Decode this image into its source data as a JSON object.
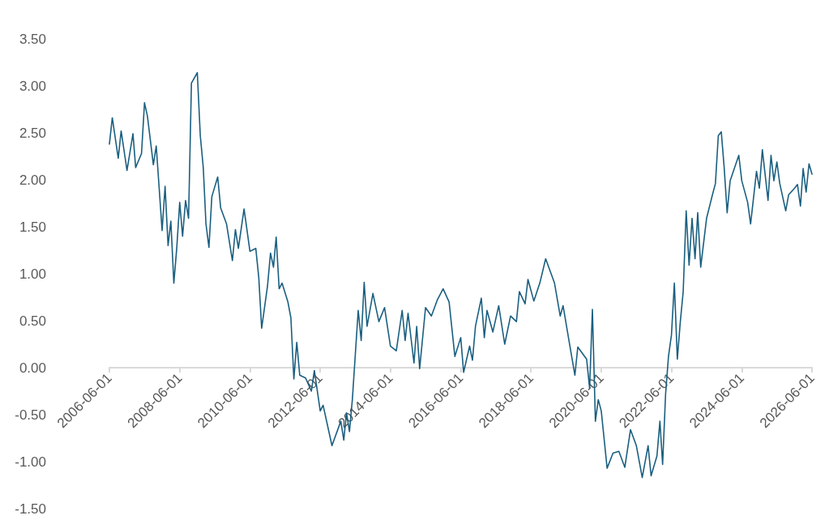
{
  "chart_data": {
    "type": "line",
    "color": "#1a5f80",
    "marker": "none",
    "line_style": "solid",
    "xlim": [
      "2006-06-01",
      "2026-06-01"
    ],
    "xticks": [
      "2006-06-01",
      "2008-06-01",
      "2010-06-01",
      "2012-06-01",
      "2014-06-01",
      "2016-06-01",
      "2018-06-01",
      "2020-06-01",
      "2022-06-01",
      "2024-06-01",
      "2026-06-01"
    ],
    "ylim": [
      -1.5,
      3.5
    ],
    "yticks": [
      {
        "value": -1.5,
        "label": "-1.50"
      },
      {
        "value": -1,
        "label": "-1.00"
      },
      {
        "value": -0.5,
        "label": "-0.50"
      },
      {
        "value": 0,
        "label": "0.00"
      },
      {
        "value": 0.5,
        "label": "0.50"
      },
      {
        "value": 1,
        "label": "1.00"
      },
      {
        "value": 1.5,
        "label": "1.50"
      },
      {
        "value": 2,
        "label": "2.00"
      },
      {
        "value": 2.5,
        "label": "2.50"
      },
      {
        "value": 3,
        "label": "3.00"
      },
      {
        "value": 3.5,
        "label": "3.50"
      }
    ],
    "x": [
      "2006-06",
      "2006-07",
      "2006-09",
      "2006-10",
      "2006-12",
      "2007-02",
      "2007-03",
      "2007-05",
      "2007-06",
      "2007-07",
      "2007-09",
      "2007-10",
      "2007-12",
      "2008-01",
      "2008-02",
      "2008-03",
      "2008-04",
      "2008-05",
      "2008-06",
      "2008-07",
      "2008-08",
      "2008-09",
      "2008-10",
      "2008-12",
      "2009-01",
      "2009-02",
      "2009-03",
      "2009-04",
      "2009-05",
      "2009-07",
      "2009-08",
      "2009-10",
      "2009-12",
      "2010-01",
      "2010-02",
      "2010-04",
      "2010-06",
      "2010-08",
      "2010-09",
      "2010-10",
      "2010-12",
      "2011-01",
      "2011-02",
      "2011-03",
      "2011-04",
      "2011-05",
      "2011-07",
      "2011-08",
      "2011-09",
      "2011-10",
      "2011-11",
      "2012-01",
      "2012-03",
      "2012-04",
      "2012-06",
      "2012-07",
      "2012-10",
      "2013-01",
      "2013-02",
      "2013-03",
      "2013-04",
      "2013-05",
      "2013-07",
      "2013-08",
      "2013-09",
      "2013-10",
      "2013-12",
      "2014-02",
      "2014-04",
      "2014-06",
      "2014-08",
      "2014-10",
      "2014-11",
      "2014-12",
      "2015-02",
      "2015-03",
      "2015-04",
      "2015-06",
      "2015-08",
      "2015-10",
      "2015-12",
      "2016-02",
      "2016-04",
      "2016-06",
      "2016-07",
      "2016-09",
      "2016-10",
      "2016-11",
      "2017-01",
      "2017-02",
      "2017-03",
      "2017-05",
      "2017-07",
      "2017-09",
      "2017-11",
      "2018-01",
      "2018-02",
      "2018-04",
      "2018-05",
      "2018-07",
      "2018-09",
      "2018-11",
      "2019-02",
      "2019-04",
      "2019-05",
      "2019-07",
      "2019-09",
      "2019-10",
      "2020-01",
      "2020-02",
      "2020-03",
      "2020-04",
      "2020-05",
      "2020-06",
      "2020-08",
      "2020-10",
      "2020-12",
      "2021-02",
      "2021-04",
      "2021-06",
      "2021-08",
      "2021-10",
      "2021-11",
      "2022-01",
      "2022-02",
      "2022-03",
      "2022-04",
      "2022-05",
      "2022-06",
      "2022-07",
      "2022-08",
      "2022-09",
      "2022-10",
      "2022-11",
      "2022-12",
      "2023-01",
      "2023-02",
      "2023-03",
      "2023-04",
      "2023-06",
      "2023-08",
      "2023-09",
      "2023-10",
      "2023-11",
      "2023-12",
      "2024-01",
      "2024-02",
      "2024-05",
      "2024-06",
      "2024-08",
      "2024-09",
      "2024-11",
      "2024-12",
      "2025-01",
      "2025-03",
      "2025-04",
      "2025-05",
      "2025-06",
      "2025-07",
      "2025-09",
      "2025-10",
      "2025-12",
      "2026-01",
      "2026-02",
      "2026-03",
      "2026-04",
      "2026-05",
      "2026-06"
    ],
    "values": [
      2.38,
      2.66,
      2.23,
      2.52,
      2.1,
      2.49,
      2.13,
      2.28,
      2.82,
      2.68,
      2.16,
      2.36,
      1.46,
      1.93,
      1.3,
      1.56,
      0.9,
      1.27,
      1.76,
      1.4,
      1.78,
      1.59,
      3.03,
      3.14,
      2.47,
      2.13,
      1.53,
      1.28,
      1.82,
      2.03,
      1.7,
      1.53,
      1.14,
      1.47,
      1.27,
      1.69,
      1.24,
      1.27,
      0.96,
      0.42,
      0.87,
      1.22,
      1.07,
      1.39,
      0.84,
      0.9,
      0.7,
      0.53,
      -0.12,
      0.27,
      -0.08,
      -0.11,
      -0.25,
      -0.03,
      -0.46,
      -0.4,
      -0.83,
      -0.57,
      -0.77,
      -0.48,
      -0.68,
      -0.34,
      0.61,
      0.29,
      0.91,
      0.44,
      0.79,
      0.49,
      0.64,
      0.23,
      0.18,
      0.61,
      0.29,
      0.58,
      0.05,
      0.44,
      -0.01,
      0.64,
      0.55,
      0.72,
      0.84,
      0.7,
      0.12,
      0.32,
      -0.05,
      0.23,
      0.08,
      0.44,
      0.74,
      0.32,
      0.61,
      0.38,
      0.66,
      0.25,
      0.55,
      0.49,
      0.81,
      0.68,
      0.94,
      0.71,
      0.9,
      1.16,
      0.9,
      0.55,
      0.66,
      0.29,
      -0.08,
      0.22,
      0.09,
      -0.22,
      0.62,
      -0.57,
      -0.34,
      -0.46,
      -1.07,
      -0.91,
      -0.89,
      -1.06,
      -0.66,
      -0.83,
      -1.17,
      -0.83,
      -1.15,
      -0.94,
      -0.57,
      -1.03,
      -0.28,
      0.12,
      0.35,
      0.9,
      0.09,
      0.49,
      0.81,
      1.67,
      1.09,
      1.59,
      1.16,
      1.65,
      1.07,
      1.59,
      1.84,
      1.96,
      2.47,
      2.51,
      2.13,
      1.65,
      1.99,
      2.26,
      1.99,
      1.76,
      1.53,
      2.09,
      1.91,
      2.32,
      1.78,
      2.26,
      1.99,
      2.19,
      1.96,
      1.67,
      1.84,
      1.91,
      1.95,
      1.72,
      2.12,
      1.87,
      2.17,
      2.06
    ]
  }
}
